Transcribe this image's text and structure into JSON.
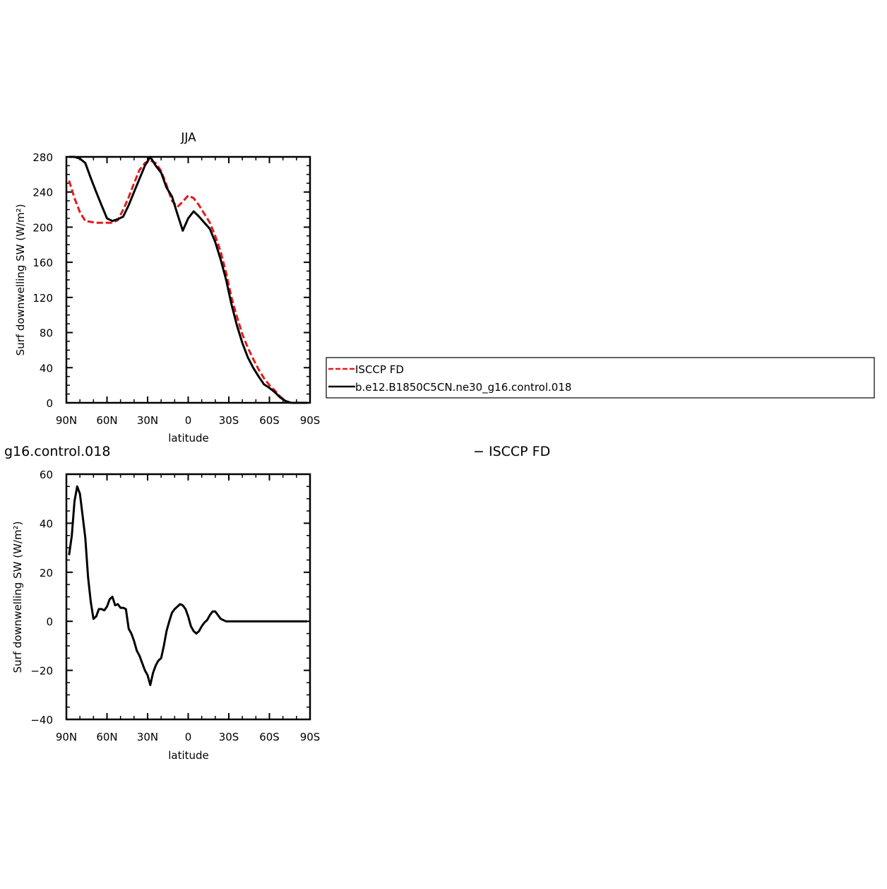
{
  "chart_data": [
    {
      "type": "line",
      "title": "JJA",
      "xlabel": "latitude",
      "ylabel": "Surf downwelling SW (W/m²)",
      "xlim": [
        90,
        -90
      ],
      "ylim": [
        0,
        280
      ],
      "x_ticks": [
        {
          "value": 90,
          "label": "90N"
        },
        {
          "value": 60,
          "label": "60N"
        },
        {
          "value": 30,
          "label": "30N"
        },
        {
          "value": 0,
          "label": "0"
        },
        {
          "value": -30,
          "label": "30S"
        },
        {
          "value": -60,
          "label": "60S"
        },
        {
          "value": -90,
          "label": "90S"
        }
      ],
      "y_ticks": [
        0,
        40,
        80,
        120,
        160,
        200,
        240,
        280
      ],
      "legend": {
        "placement": "right",
        "entries": [
          "ISCCP FD",
          "b.e12.B1850C5CN.ne30_g16.control.018"
        ]
      },
      "series": [
        {
          "name": "ISCCP FD",
          "color": "#e41a1c",
          "dash": "dashed",
          "x": [
            88,
            84,
            80,
            76,
            72,
            68,
            64,
            60,
            56,
            52,
            48,
            44,
            40,
            36,
            32,
            28,
            24,
            20,
            16,
            12,
            8,
            4,
            0,
            -4,
            -8,
            -12,
            -16,
            -20,
            -24,
            -28,
            -32,
            -36,
            -40,
            -44,
            -48,
            -52,
            -56,
            -60,
            -64,
            -68,
            -72,
            -76,
            -80,
            -84,
            -88
          ],
          "y": [
            253,
            233,
            217,
            207,
            206,
            205,
            205,
            205,
            205,
            208,
            220,
            234,
            250,
            265,
            273,
            276,
            273,
            264,
            248,
            230,
            223,
            229,
            236,
            233,
            225,
            215,
            205,
            190,
            172,
            148,
            120,
            98,
            78,
            63,
            50,
            38,
            28,
            20,
            14,
            7,
            2,
            0,
            0,
            0,
            0
          ]
        },
        {
          "name": "b.e12.B1850C5CN.ne30_g16.control.018",
          "color": "#000000",
          "dash": "solid",
          "x": [
            88,
            84,
            80,
            76,
            72,
            68,
            64,
            60,
            56,
            52,
            48,
            44,
            40,
            36,
            32,
            28,
            24,
            20,
            16,
            12,
            8,
            4,
            0,
            -4,
            -8,
            -12,
            -16,
            -20,
            -24,
            -28,
            -32,
            -36,
            -40,
            -44,
            -48,
            -52,
            -56,
            -60,
            -64,
            -68,
            -72,
            -76,
            -80,
            -84,
            -88
          ],
          "y": [
            280,
            280,
            278,
            273,
            256,
            240,
            225,
            210,
            207,
            209,
            212,
            225,
            240,
            255,
            270,
            280,
            270,
            262,
            245,
            235,
            215,
            196,
            210,
            218,
            212,
            205,
            198,
            183,
            163,
            140,
            112,
            88,
            68,
            52,
            40,
            30,
            21,
            17,
            12,
            6,
            2,
            0,
            0,
            0,
            0
          ]
        }
      ]
    },
    {
      "type": "line",
      "title": "g16.control.018",
      "subtitle": "− ISCCP FD",
      "xlabel": "latitude",
      "ylabel": "Surf downwelling SW (W/m²)",
      "xlim": [
        90,
        -90
      ],
      "ylim": [
        -40,
        60
      ],
      "x_ticks": [
        {
          "value": 90,
          "label": "90N"
        },
        {
          "value": 60,
          "label": "60N"
        },
        {
          "value": 30,
          "label": "30N"
        },
        {
          "value": 0,
          "label": "0"
        },
        {
          "value": -30,
          "label": "30S"
        },
        {
          "value": -60,
          "label": "60S"
        },
        {
          "value": -90,
          "label": "90S"
        }
      ],
      "y_ticks": [
        -40,
        -20,
        0,
        20,
        40,
        60
      ],
      "series": [
        {
          "color": "#000000",
          "dash": "solid",
          "x": [
            88,
            86,
            84,
            82,
            80,
            78,
            76,
            74,
            72,
            70,
            68,
            66,
            64,
            62,
            60,
            58,
            56,
            54,
            52,
            50,
            48,
            46,
            44,
            42,
            40,
            38,
            36,
            34,
            32,
            30,
            28,
            26,
            24,
            22,
            20,
            18,
            16,
            14,
            12,
            10,
            8,
            6,
            4,
            2,
            0,
            -2,
            -4,
            -6,
            -8,
            -10,
            -12,
            -14,
            -16,
            -18,
            -20,
            -22,
            -24,
            -26,
            -28,
            -30,
            -32,
            -34,
            -36,
            -38,
            -40,
            -42,
            -44,
            -46,
            -48,
            -50,
            -52,
            -54,
            -56,
            -58,
            -60,
            -62,
            -64,
            -66,
            -68,
            -70,
            -72,
            -74,
            -76,
            -78,
            -80,
            -82,
            -84,
            -86,
            -88
          ],
          "y": [
            27,
            35,
            49,
            55,
            52,
            43,
            34,
            18,
            8,
            1,
            2,
            5,
            5,
            4.5,
            6,
            9,
            10,
            6.5,
            7,
            5.5,
            5.5,
            5,
            -3,
            -5,
            -8,
            -12,
            -14,
            -17,
            -20,
            -22,
            -26,
            -21,
            -18,
            -16,
            -15,
            -10,
            -4,
            0,
            3.5,
            5,
            6,
            7,
            6.5,
            5,
            2,
            -2,
            -4,
            -5,
            -4,
            -2,
            -0.5,
            0.5,
            2.5,
            4,
            4,
            2.5,
            1,
            0.5,
            0,
            0,
            0,
            0,
            0,
            0,
            0,
            0,
            0,
            0,
            0,
            0,
            0,
            0,
            0,
            0,
            0,
            0,
            0,
            0,
            0,
            0,
            0,
            0,
            0,
            0,
            0,
            0,
            0,
            0,
            0
          ]
        }
      ]
    }
  ]
}
